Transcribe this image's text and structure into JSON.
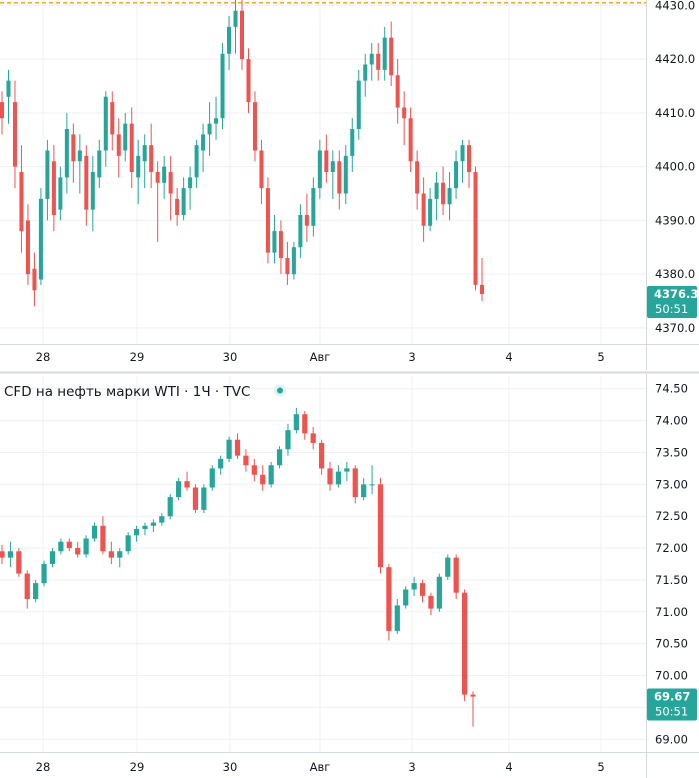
{
  "colors": {
    "up": "#26a69a",
    "down": "#ef5350",
    "tag_bg": "#26a69a",
    "status_dot": "#26a69a",
    "high_line": "#f5a623"
  },
  "chart_data": [
    {
      "type": "candlestick",
      "title": "",
      "x_labels": [
        "28",
        "29",
        "30",
        "Авг",
        "3",
        "4",
        "5"
      ],
      "y_ticks": [
        "4430.0",
        "4420.0",
        "4410.0",
        "4400.0",
        "4390.0",
        "4380.0",
        "4370.0"
      ],
      "ylim": [
        4367,
        4431
      ],
      "grid": true,
      "last_price": "4376.3",
      "countdown": "50:51",
      "high_line": 4430.5,
      "series": [
        {
          "values": [
            [
              4412,
              4414,
              4406,
              4409
            ],
            [
              4413,
              4418,
              4408,
              4416
            ],
            [
              4412,
              4416,
              4396,
              4400
            ],
            [
              4399,
              4404,
              4384,
              4388
            ],
            [
              4390,
              4393,
              4378,
              4380
            ],
            [
              4381,
              4384,
              4374,
              4377
            ],
            [
              4379,
              4396,
              4378,
              4394
            ],
            [
              4394,
              4405,
              4390,
              4403
            ],
            [
              4401,
              4404,
              4388,
              4391
            ],
            [
              4392,
              4400,
              4390,
              4398
            ],
            [
              4398,
              4410,
              4395,
              4407
            ],
            [
              4406,
              4408,
              4397,
              4401
            ],
            [
              4401,
              4406,
              4395,
              4403
            ],
            [
              4402,
              4404,
              4389,
              4392
            ],
            [
              4392,
              4402,
              4388,
              4399
            ],
            [
              4398,
              4405,
              4396,
              4403
            ],
            [
              4403,
              4414,
              4400,
              4413
            ],
            [
              4412,
              4414,
              4403,
              4406
            ],
            [
              4406,
              4409,
              4398,
              4402
            ],
            [
              4403,
              4410,
              4401,
              4408
            ],
            [
              4408,
              4411,
              4396,
              4399
            ],
            [
              4398,
              4405,
              4393,
              4402
            ],
            [
              4401,
              4406,
              4396,
              4404
            ],
            [
              4404,
              4408,
              4396,
              4399
            ],
            [
              4399,
              4401,
              4386,
              4397
            ],
            [
              4397,
              4402,
              4394,
              4400
            ],
            [
              4399,
              4402,
              4390,
              4395
            ],
            [
              4394,
              4396,
              4389,
              4391
            ],
            [
              4391,
              4398,
              4390,
              4396
            ],
            [
              4396,
              4400,
              4392,
              4398
            ],
            [
              4398,
              4405,
              4396,
              4404
            ],
            [
              4403,
              4408,
              4399,
              4406
            ],
            [
              4406,
              4412,
              4402,
              4408
            ],
            [
              4408,
              4413,
              4405,
              4409
            ],
            [
              4409,
              4423,
              4407,
              4421
            ],
            [
              4421,
              4428,
              4418,
              4426
            ],
            [
              4426,
              4432,
              4421,
              4429
            ],
            [
              4429,
              4431,
              4418,
              4420
            ],
            [
              4420,
              4422,
              4410,
              4412
            ],
            [
              4412,
              4414,
              4401,
              4403
            ],
            [
              4403,
              4405,
              4393,
              4396
            ],
            [
              4396,
              4398,
              4382,
              4384
            ],
            [
              4384,
              4391,
              4382,
              4388
            ],
            [
              4388,
              4390,
              4380,
              4383
            ],
            [
              4383,
              4386,
              4378,
              4380
            ],
            [
              4380,
              4386,
              4379,
              4385
            ],
            [
              4385,
              4393,
              4383,
              4391
            ],
            [
              4391,
              4395,
              4386,
              4389
            ],
            [
              4389,
              4398,
              4387,
              4396
            ],
            [
              4396,
              4405,
              4394,
              4403
            ],
            [
              4403,
              4406,
              4397,
              4399
            ],
            [
              4399,
              4403,
              4394,
              4401
            ],
            [
              4401,
              4403,
              4392,
              4395
            ],
            [
              4395,
              4404,
              4393,
              4402
            ],
            [
              4402,
              4409,
              4399,
              4407
            ],
            [
              4407,
              4418,
              4405,
              4416
            ],
            [
              4416,
              4421,
              4413,
              4419
            ],
            [
              4419,
              4423,
              4416,
              4421
            ],
            [
              4421,
              4423,
              4416,
              4418
            ],
            [
              4418,
              4426,
              4416,
              4424
            ],
            [
              4424,
              4427,
              4415,
              4417
            ],
            [
              4417,
              4420,
              4408,
              4411
            ],
            [
              4411,
              4414,
              4404,
              4409
            ],
            [
              4409,
              4411,
              4399,
              4401
            ],
            [
              4401,
              4403,
              4392,
              4395
            ],
            [
              4395,
              4398,
              4386,
              4389
            ],
            [
              4389,
              4396,
              4388,
              4394
            ],
            [
              4394,
              4399,
              4390,
              4397
            ],
            [
              4397,
              4400,
              4391,
              4393
            ],
            [
              4393,
              4399,
              4390,
              4396
            ],
            [
              4396,
              4403,
              4394,
              4401
            ],
            [
              4401,
              4405,
              4397,
              4404
            ],
            [
              4404,
              4405,
              4396,
              4399
            ],
            [
              4399,
              4400,
              4377,
              4378
            ],
            [
              4378,
              4383,
              4375,
              4376.3
            ]
          ]
        }
      ]
    },
    {
      "type": "candlestick",
      "title": "CFD на нефть марки WTI · 1Ч · TVC",
      "x_labels": [
        "28",
        "29",
        "30",
        "Авг",
        "3",
        "4",
        "5"
      ],
      "y_ticks": [
        "74.50",
        "74.00",
        "73.50",
        "73.00",
        "72.50",
        "72.00",
        "71.50",
        "71.00",
        "70.50",
        "70.00",
        "69.50",
        "69.00"
      ],
      "ylim": [
        68.8,
        74.7
      ],
      "grid": true,
      "last_price": "69.67",
      "countdown": "50:51",
      "series": [
        {
          "values": [
            [
              71.95,
              72.05,
              71.75,
              71.85
            ],
            [
              71.85,
              72.1,
              71.7,
              71.95
            ],
            [
              71.95,
              72.0,
              71.55,
              71.6
            ],
            [
              71.6,
              71.65,
              71.05,
              71.2
            ],
            [
              71.2,
              71.5,
              71.15,
              71.45
            ],
            [
              71.45,
              71.8,
              71.4,
              71.75
            ],
            [
              71.75,
              72.0,
              71.7,
              71.95
            ],
            [
              71.95,
              72.15,
              71.9,
              72.1
            ],
            [
              72.1,
              72.15,
              71.95,
              72.0
            ],
            [
              72.0,
              72.1,
              71.85,
              71.9
            ],
            [
              71.9,
              72.2,
              71.85,
              72.15
            ],
            [
              72.15,
              72.4,
              72.1,
              72.35
            ],
            [
              72.35,
              72.5,
              71.9,
              71.95
            ],
            [
              71.95,
              72.1,
              71.75,
              71.85
            ],
            [
              71.85,
              72.0,
              71.7,
              71.95
            ],
            [
              71.95,
              72.25,
              71.9,
              72.2
            ],
            [
              72.2,
              72.35,
              72.1,
              72.3
            ],
            [
              72.3,
              72.4,
              72.2,
              72.35
            ],
            [
              72.35,
              72.45,
              72.25,
              72.4
            ],
            [
              72.4,
              72.55,
              72.35,
              72.5
            ],
            [
              72.5,
              72.85,
              72.45,
              72.8
            ],
            [
              72.8,
              73.1,
              72.75,
              73.05
            ],
            [
              73.05,
              73.2,
              72.9,
              72.95
            ],
            [
              72.95,
              73.0,
              72.55,
              72.6
            ],
            [
              72.6,
              73.0,
              72.55,
              72.95
            ],
            [
              72.95,
              73.3,
              72.9,
              73.25
            ],
            [
              73.25,
              73.45,
              73.15,
              73.4
            ],
            [
              73.4,
              73.75,
              73.35,
              73.7
            ],
            [
              73.7,
              73.8,
              73.4,
              73.45
            ],
            [
              73.45,
              73.55,
              73.2,
              73.3
            ],
            [
              73.3,
              73.4,
              73.05,
              73.15
            ],
            [
              73.15,
              73.3,
              72.9,
              73.0
            ],
            [
              73.0,
              73.35,
              72.95,
              73.3
            ],
            [
              73.3,
              73.6,
              73.25,
              73.55
            ],
            [
              73.55,
              73.95,
              73.45,
              73.85
            ],
            [
              73.85,
              74.2,
              73.8,
              74.1
            ],
            [
              74.1,
              74.15,
              73.7,
              73.8
            ],
            [
              73.8,
              73.9,
              73.55,
              73.65
            ],
            [
              73.65,
              73.7,
              73.15,
              73.25
            ],
            [
              73.25,
              73.35,
              72.9,
              73.0
            ],
            [
              73.0,
              73.3,
              72.95,
              73.2
            ],
            [
              73.2,
              73.35,
              73.05,
              73.25
            ],
            [
              73.25,
              73.3,
              72.7,
              72.8
            ],
            [
              72.8,
              73.1,
              72.75,
              73.0
            ],
            [
              73.0,
              73.3,
              72.85,
              73.0
            ],
            [
              73.0,
              73.1,
              71.6,
              71.7
            ],
            [
              71.7,
              71.75,
              70.55,
              70.7
            ],
            [
              70.7,
              71.2,
              70.65,
              71.1
            ],
            [
              71.1,
              71.4,
              71.05,
              71.35
            ],
            [
              71.35,
              71.55,
              71.25,
              71.45
            ],
            [
              71.45,
              71.5,
              71.15,
              71.25
            ],
            [
              71.25,
              71.3,
              70.95,
              71.05
            ],
            [
              71.05,
              71.6,
              71.0,
              71.55
            ],
            [
              71.55,
              71.9,
              71.5,
              71.85
            ],
            [
              71.85,
              71.9,
              71.2,
              71.3
            ],
            [
              71.3,
              71.35,
              69.6,
              69.7
            ],
            [
              69.7,
              69.75,
              69.2,
              69.67
            ]
          ]
        }
      ]
    }
  ]
}
